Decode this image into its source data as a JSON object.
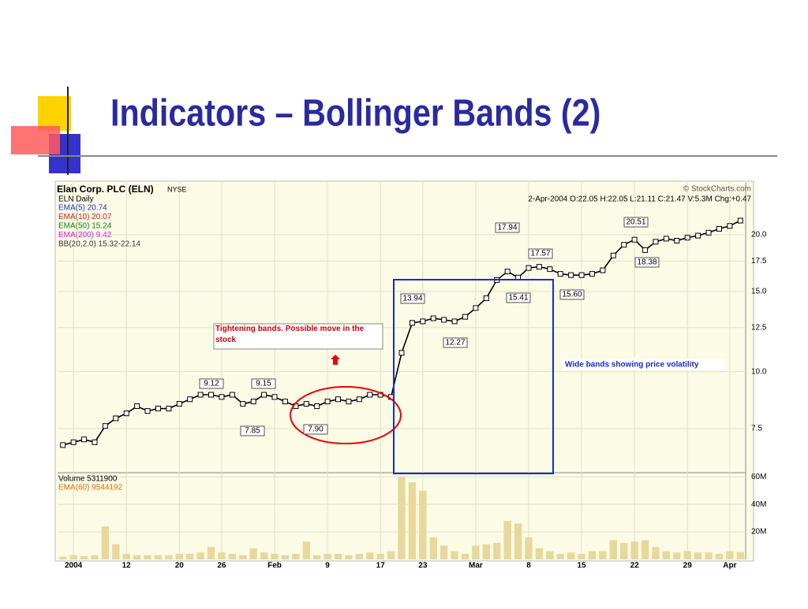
{
  "slide": {
    "title": "Indicators – Bollinger Bands (2)"
  },
  "chart_data": {
    "type": "line",
    "title": "Elan Corp. PLC (ELN)",
    "exchange": "NYSE",
    "source": "© StockCharts.com",
    "quote": "2-Apr-2004 O:22.05 H:22.05 L:21.11 C:21.47 V:5.3M Chg:+0.47",
    "indicator_legend": [
      "EMA(5) 20.74",
      "EMA(10) 20.07",
      "EMA(50) 15.24",
      "EMA(200) 9.42",
      "BB(20,2.0) 15.32-22.14"
    ],
    "log_scale": true,
    "grid": true,
    "x": [
      0,
      1,
      2,
      3,
      4,
      5,
      6,
      7,
      8,
      9,
      10,
      11,
      12,
      13,
      14,
      15,
      16,
      17,
      18,
      19,
      20,
      21,
      22,
      23,
      24,
      25,
      26,
      27,
      28,
      29,
      30,
      31,
      32,
      33,
      34,
      35,
      36,
      37,
      38,
      39,
      40,
      41,
      42,
      43,
      44,
      45,
      46,
      47,
      48,
      49,
      50,
      51,
      52,
      53,
      54,
      55,
      56,
      57,
      58,
      59,
      60,
      61,
      62,
      63,
      64
    ],
    "xlim": [
      -0.5,
      64.5
    ],
    "xticks": [
      {
        "value": 1,
        "label": "2004"
      },
      {
        "value": 6,
        "label": "12"
      },
      {
        "value": 11,
        "label": "20"
      },
      {
        "value": 15,
        "label": "26"
      },
      {
        "value": 20,
        "label": "Feb"
      },
      {
        "value": 25,
        "label": "9"
      },
      {
        "value": 30,
        "label": "17"
      },
      {
        "value": 34,
        "label": "23"
      },
      {
        "value": 39,
        "label": "Mar"
      },
      {
        "value": 44,
        "label": "8"
      },
      {
        "value": 49,
        "label": "15"
      },
      {
        "value": 54,
        "label": "22"
      },
      {
        "value": 59,
        "label": "29"
      },
      {
        "value": 63,
        "label": "Apr"
      }
    ],
    "ylim": [
      6,
      26
    ],
    "yticks": [
      7.5,
      {
        "value": 10,
        "label": "10.0"
      },
      12.5,
      {
        "value": 15,
        "label": "15.0"
      },
      17.5,
      {
        "value": 20,
        "label": "20.0"
      }
    ],
    "series": [
      {
        "name": "ELN Daily",
        "color": "#000000",
        "values": [
          6.9,
          7.0,
          7.1,
          7.0,
          7.6,
          7.9,
          8.1,
          8.4,
          8.2,
          8.3,
          8.3,
          8.5,
          8.7,
          8.9,
          8.9,
          8.8,
          8.9,
          8.5,
          8.6,
          8.9,
          8.8,
          8.6,
          8.4,
          8.5,
          8.4,
          8.6,
          8.7,
          8.6,
          8.7,
          8.9,
          8.9,
          8.8,
          11.0,
          12.8,
          12.9,
          13.1,
          13.0,
          12.9,
          13.2,
          13.8,
          14.5,
          15.9,
          16.6,
          16.1,
          16.9,
          17.0,
          16.8,
          16.4,
          16.3,
          16.3,
          16.4,
          16.7,
          18.0,
          19.0,
          19.5,
          18.5,
          19.3,
          19.6,
          19.4,
          19.7,
          19.9,
          20.2,
          20.6,
          20.9,
          21.47
        ]
      }
    ],
    "annotations": [
      "9.12",
      "9.15",
      "7.85",
      "7.90",
      "13.94",
      "12.27",
      "17.94",
      "17.57",
      "15.41",
      "15.60",
      "20.51",
      "18.38"
    ],
    "callouts": [
      "Tightening bands. Possible move in the stock",
      "Wide bands showing price volatility"
    ],
    "volume": {
      "legend": [
        "Volume 5311900",
        "EMA(60) 9544192"
      ],
      "color": "#e8d89c",
      "ylim": [
        0,
        63000000
      ],
      "yticks": [
        {
          "value": 20000000,
          "label": "20M"
        },
        {
          "value": 40000000,
          "label": "40M"
        },
        {
          "value": 60000000,
          "label": "60M"
        }
      ],
      "values": [
        2000000,
        3000000,
        2500000,
        3000000,
        24000000,
        11000000,
        4000000,
        3000000,
        3000000,
        3000000,
        3000000,
        4000000,
        4000000,
        5000000,
        9000000,
        5000000,
        4000000,
        3000000,
        8000000,
        5000000,
        4000000,
        3000000,
        4000000,
        13000000,
        3000000,
        4000000,
        4000000,
        3000000,
        4000000,
        5000000,
        4000000,
        6000000,
        60000000,
        56000000,
        50000000,
        16000000,
        10000000,
        6000000,
        4000000,
        10000000,
        11000000,
        12000000,
        28000000,
        26000000,
        16000000,
        8000000,
        6000000,
        4000000,
        5000000,
        4000000,
        6000000,
        6000000,
        14000000,
        12000000,
        13000000,
        14000000,
        9000000,
        6000000,
        5000000,
        6000000,
        5000000,
        5000000,
        4000000,
        6000000,
        5300000
      ]
    }
  }
}
